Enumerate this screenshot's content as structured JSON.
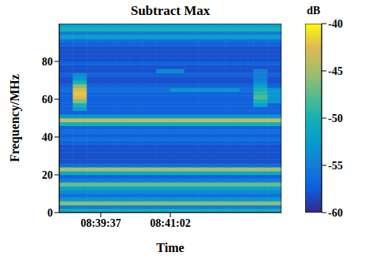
{
  "chart_data": {
    "type": "heatmap",
    "title": "Subtract Max",
    "x_label": "Time",
    "y_label": "Frequency/MHz",
    "xlim": [
      31126,
      31398
    ],
    "xticks": [
      {
        "value": 31177,
        "label": "08:39:37"
      },
      {
        "value": 31262,
        "label": "08:41:02"
      }
    ],
    "ylim": [
      0,
      100
    ],
    "yticks": [
      0,
      20,
      40,
      60,
      80
    ],
    "x_edges": [
      31126,
      31143,
      31160,
      31177,
      31194,
      31211,
      31228,
      31245,
      31262,
      31279,
      31296,
      31313,
      31330,
      31347,
      31364,
      31381,
      31398
    ],
    "y_edges": [
      0,
      2,
      4,
      6,
      8,
      10,
      12,
      14,
      16,
      18,
      20,
      22,
      24,
      26,
      28,
      30,
      32,
      34,
      36,
      38,
      40,
      42,
      44,
      46,
      48,
      50,
      52,
      54,
      56,
      58,
      60,
      62,
      64,
      66,
      68,
      70,
      72,
      74,
      76,
      78,
      80,
      82,
      84,
      86,
      88,
      90,
      92,
      94,
      96,
      98,
      100
    ],
    "cells": [
      [
        -50,
        -50,
        -50,
        -50,
        -50,
        -50,
        -50,
        -50,
        -50,
        -50,
        -50,
        -50,
        -50,
        -50,
        -50,
        -50
      ],
      [
        -55,
        -55,
        -55,
        -55,
        -55,
        -55,
        -55,
        -55,
        -55,
        -55,
        -55,
        -55,
        -55,
        -55,
        -55,
        -55
      ],
      [
        -46,
        -46,
        -46,
        -46,
        -46,
        -46,
        -46,
        -46,
        -46,
        -46,
        -46,
        -46,
        -46,
        -46,
        -46,
        -46
      ],
      [
        -53,
        -53,
        -53,
        -53,
        -53,
        -53,
        -53,
        -53,
        -53,
        -53,
        -53,
        -53,
        -53,
        -53,
        -53,
        -53
      ],
      [
        -56,
        -56,
        -56,
        -56,
        -56,
        -56,
        -56,
        -56,
        -56,
        -56,
        -56,
        -56,
        -56,
        -56,
        -56,
        -56
      ],
      [
        -54,
        -54,
        -54,
        -54,
        -54,
        -54,
        -54,
        -54,
        -54,
        -54,
        -54,
        -54,
        -54,
        -54,
        -54,
        -54
      ],
      [
        -52,
        -52,
        -52,
        -52,
        -52,
        -52,
        -52,
        -52,
        -52,
        -52,
        -52,
        -52,
        -52,
        -52,
        -52,
        -52
      ],
      [
        -47,
        -47,
        -47,
        -47,
        -47,
        -47,
        -47,
        -47,
        -47,
        -47,
        -47,
        -47,
        -47,
        -47,
        -47,
        -47
      ],
      [
        -55,
        -55,
        -55,
        -55,
        -55,
        -55,
        -55,
        -55,
        -55,
        -55,
        -55,
        -55,
        -55,
        -55,
        -55,
        -55
      ],
      [
        -57,
        -57,
        -57,
        -57,
        -57,
        -57,
        -57,
        -57,
        -57,
        -57,
        -57,
        -57,
        -57,
        -57,
        -57,
        -57
      ],
      [
        -51,
        -51,
        -51,
        -51,
        -51,
        -51,
        -51,
        -51,
        -51,
        -51,
        -51,
        -51,
        -51,
        -51,
        -51,
        -51
      ],
      [
        -45,
        -45,
        -45,
        -45,
        -45,
        -45,
        -45,
        -45,
        -45,
        -45,
        -45,
        -45,
        -45,
        -45,
        -45,
        -45
      ],
      [
        -56,
        -56,
        -56,
        -56,
        -56,
        -56,
        -56,
        -56,
        -56,
        -56,
        -56,
        -56,
        -56,
        -56,
        -56,
        -56
      ],
      [
        -58,
        -58,
        -58,
        -58,
        -58,
        -58,
        -58,
        -58,
        -58,
        -58,
        -58,
        -58,
        -58,
        -58,
        -58,
        -58
      ],
      [
        -58,
        -58,
        -58,
        -58,
        -58,
        -58,
        -58,
        -58,
        -58,
        -58,
        -58,
        -58,
        -58,
        -58,
        -58,
        -58
      ],
      [
        -58,
        -58,
        -58,
        -58,
        -58,
        -58,
        -58,
        -58,
        -58,
        -58,
        -58,
        -58,
        -58,
        -58,
        -58,
        -58
      ],
      [
        -58,
        -58,
        -58,
        -58,
        -58,
        -58,
        -58,
        -58,
        -58,
        -58,
        -58,
        -58,
        -58,
        -58,
        -58,
        -58
      ],
      [
        -58,
        -58,
        -58,
        -58,
        -58,
        -58,
        -58,
        -58,
        -58,
        -58,
        -58,
        -58,
        -58,
        -58,
        -58,
        -58
      ],
      [
        -57,
        -57,
        -57,
        -57,
        -57,
        -57,
        -57,
        -57,
        -57,
        -57,
        -57,
        -57,
        -57,
        -57,
        -57,
        -57
      ],
      [
        -56,
        -56,
        -56,
        -56,
        -56,
        -56,
        -56,
        -56,
        -56,
        -56,
        -56,
        -56,
        -56,
        -56,
        -56,
        -56
      ],
      [
        -57,
        -57,
        -57,
        -57,
        -57,
        -57,
        -57,
        -57,
        -57,
        -57,
        -57,
        -57,
        -57,
        -57,
        -57,
        -57
      ],
      [
        -56,
        -56,
        -56,
        -56,
        -56,
        -56,
        -56,
        -56,
        -56,
        -56,
        -56,
        -56,
        -56,
        -56,
        -56,
        -56
      ],
      [
        -57,
        -57,
        -57,
        -57,
        -57,
        -57,
        -57,
        -57,
        -57,
        -57,
        -57,
        -57,
        -57,
        -57,
        -57,
        -57
      ],
      [
        -50,
        -50,
        -50,
        -50,
        -50,
        -50,
        -50,
        -50,
        -50,
        -50,
        -50,
        -50,
        -50,
        -50,
        -50,
        -50
      ],
      [
        -44,
        -44,
        -44,
        -44,
        -44,
        -44,
        -44,
        -44,
        -44,
        -44,
        -44,
        -44,
        -44,
        -44,
        -44,
        -44
      ],
      [
        -53,
        -53,
        -53,
        -53,
        -53,
        -53,
        -53,
        -53,
        -53,
        -53,
        -53,
        -53,
        -53,
        -53,
        -53,
        -53
      ],
      [
        -57,
        -57,
        -57,
        -57,
        -57,
        -57,
        -57,
        -57,
        -57,
        -57,
        -57,
        -57,
        -57,
        -57,
        -57,
        -57
      ],
      [
        -57,
        -52,
        -57,
        -57,
        -57,
        -57,
        -57,
        -57,
        -57,
        -57,
        -57,
        -57,
        -57,
        -57,
        -57,
        -57
      ],
      [
        -57,
        -50,
        -57,
        -57,
        -57,
        -57,
        -57,
        -57,
        -57,
        -57,
        -57,
        -57,
        -57,
        -57,
        -52,
        -57
      ],
      [
        -57,
        -46,
        -57,
        -57,
        -57,
        -57,
        -57,
        -57,
        -57,
        -57,
        -57,
        -57,
        -57,
        -57,
        -50,
        -53
      ],
      [
        -57,
        -43,
        -57,
        -57,
        -57,
        -57,
        -57,
        -57,
        -57,
        -57,
        -57,
        -57,
        -57,
        -57,
        -48,
        -53
      ],
      [
        -57,
        -42,
        -57,
        -57,
        -57,
        -57,
        -57,
        -57,
        -57,
        -57,
        -57,
        -57,
        -57,
        -57,
        -49,
        -53
      ],
      [
        -56,
        -43,
        -56,
        -56,
        -56,
        -56,
        -56,
        -56,
        -53,
        -53,
        -53,
        -53,
        -53,
        -56,
        -50,
        -53
      ],
      [
        -57,
        -46,
        -57,
        -57,
        -57,
        -57,
        -57,
        -57,
        -57,
        -57,
        -57,
        -57,
        -57,
        -57,
        -52,
        -57
      ],
      [
        -58,
        -50,
        -58,
        -58,
        -58,
        -58,
        -58,
        -58,
        -58,
        -58,
        -58,
        -58,
        -58,
        -58,
        -54,
        -58
      ],
      [
        -58,
        -53,
        -58,
        -58,
        -58,
        -58,
        -58,
        -58,
        -58,
        -58,
        -58,
        -58,
        -58,
        -58,
        -55,
        -58
      ],
      [
        -57,
        -54,
        -57,
        -57,
        -57,
        -57,
        -57,
        -57,
        -57,
        -57,
        -57,
        -57,
        -57,
        -57,
        -55,
        -57
      ],
      [
        -58,
        -58,
        -58,
        -58,
        -58,
        -58,
        -58,
        -54,
        -54,
        -58,
        -58,
        -58,
        -58,
        -58,
        -55,
        -58
      ],
      [
        -58,
        -58,
        -58,
        -58,
        -58,
        -58,
        -58,
        -58,
        -58,
        -58,
        -58,
        -58,
        -58,
        -58,
        -58,
        -58
      ],
      [
        -57,
        -57,
        -57,
        -57,
        -57,
        -57,
        -57,
        -57,
        -57,
        -57,
        -57,
        -57,
        -57,
        -57,
        -57,
        -57
      ],
      [
        -58,
        -58,
        -58,
        -58,
        -58,
        -58,
        -58,
        -58,
        -58,
        -58,
        -58,
        -58,
        -58,
        -58,
        -58,
        -58
      ],
      [
        -58,
        -58,
        -58,
        -58,
        -58,
        -58,
        -58,
        -58,
        -58,
        -58,
        -58,
        -58,
        -58,
        -58,
        -58,
        -58
      ],
      [
        -58,
        -58,
        -58,
        -58,
        -58,
        -58,
        -58,
        -58,
        -58,
        -58,
        -58,
        -58,
        -58,
        -58,
        -58,
        -58
      ],
      [
        -58,
        -58,
        -58,
        -58,
        -58,
        -58,
        -58,
        -58,
        -58,
        -58,
        -58,
        -58,
        -58,
        -58,
        -58,
        -58
      ],
      [
        -57,
        -57,
        -57,
        -57,
        -57,
        -57,
        -57,
        -57,
        -57,
        -57,
        -57,
        -57,
        -57,
        -57,
        -57,
        -57
      ],
      [
        -56,
        -56,
        -56,
        -56,
        -56,
        -56,
        -56,
        -56,
        -56,
        -56,
        -56,
        -56,
        -56,
        -56,
        -56,
        -56
      ],
      [
        -52,
        -52,
        -52,
        -52,
        -52,
        -52,
        -52,
        -52,
        -52,
        -52,
        -52,
        -52,
        -52,
        -52,
        -52,
        -52
      ],
      [
        -55,
        -55,
        -55,
        -55,
        -55,
        -55,
        -55,
        -55,
        -55,
        -55,
        -55,
        -55,
        -55,
        -55,
        -55,
        -55
      ],
      [
        -50,
        -50,
        -50,
        -50,
        -50,
        -50,
        -50,
        -50,
        -50,
        -50,
        -50,
        -50,
        -50,
        -50,
        -50,
        -50
      ],
      [
        -52,
        -52,
        -52,
        -52,
        -52,
        -52,
        -52,
        -52,
        -52,
        -52,
        -52,
        -52,
        -52,
        -52,
        -52,
        -52
      ]
    ],
    "colorbar": {
      "label": "dB",
      "range": [
        -60,
        -40
      ],
      "ticks": [
        -60,
        -55,
        -50,
        -45,
        -40
      ]
    }
  }
}
